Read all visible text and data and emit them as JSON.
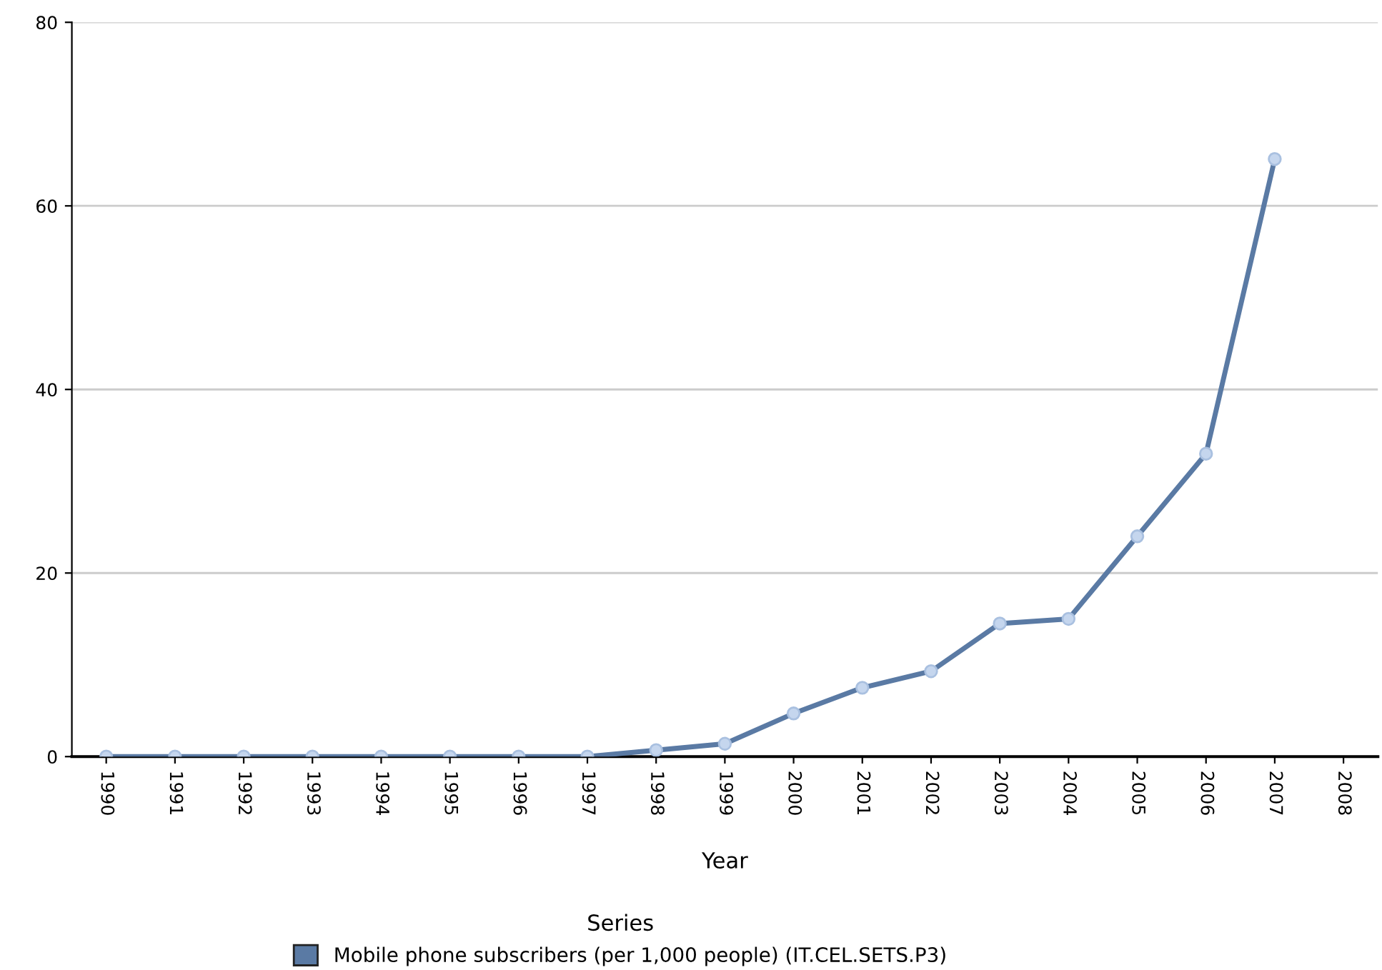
{
  "chart_data": {
    "type": "line",
    "xlabel": "Year",
    "legend_title": "Series",
    "legend": "bottom",
    "categories": [
      "1990",
      "1991",
      "1992",
      "1993",
      "1994",
      "1995",
      "1996",
      "1997",
      "1998",
      "1999",
      "2000",
      "2001",
      "2002",
      "2003",
      "2004",
      "2005",
      "2006",
      "2007",
      "2008"
    ],
    "series": [
      {
        "name": "Mobile phone subscribers (per 1,000 people) (IT.CEL.SETS.P3)",
        "color": "#5a7aa4",
        "values": [
          0,
          0,
          0,
          0,
          0,
          0,
          0,
          0,
          0.7,
          1.4,
          4.7,
          7.5,
          9.3,
          14.5,
          15.0,
          24.0,
          33.0,
          65.1,
          null
        ]
      }
    ],
    "ylim": [
      0,
      80
    ],
    "yticks": [
      0,
      20,
      40,
      60,
      80
    ],
    "grid": "y",
    "marker": "circle",
    "line_style": "solid"
  }
}
